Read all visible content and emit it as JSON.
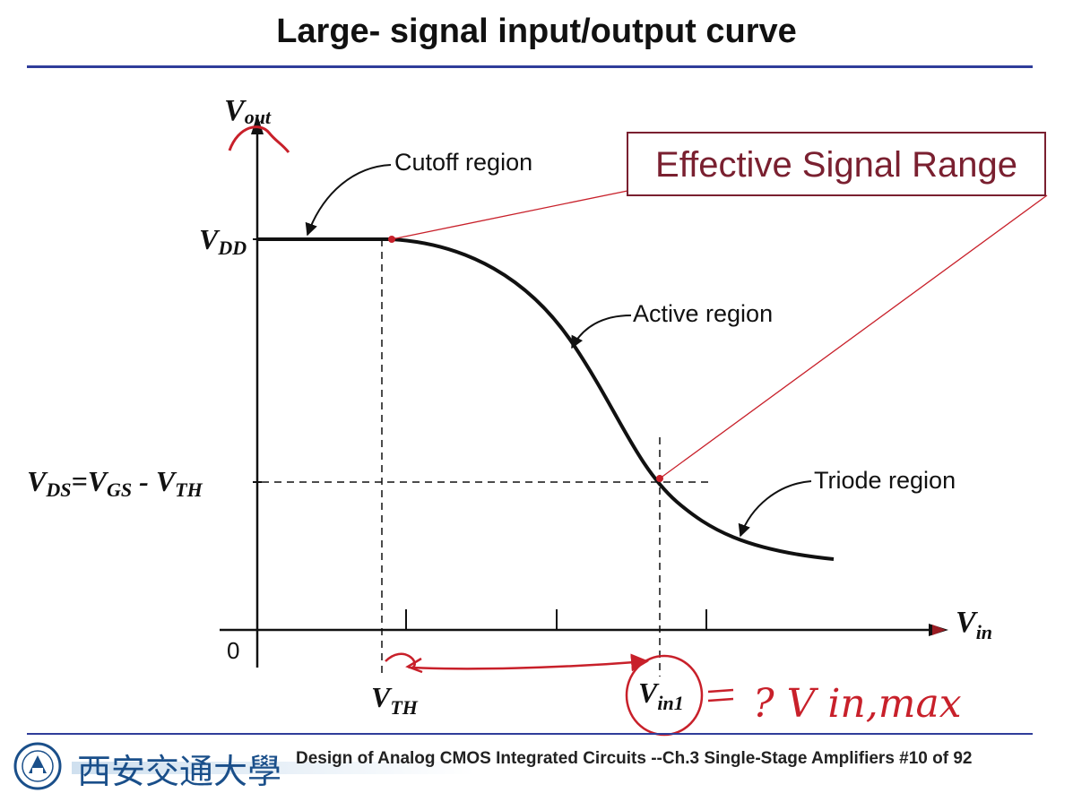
{
  "slide": {
    "title": "Large- signal input/output curve"
  },
  "axes": {
    "y_label_main": "V",
    "y_label_sub": "out",
    "x_label_main": "V",
    "x_label_sub": "in",
    "origin_label": "0"
  },
  "levels": {
    "vdd_main": "V",
    "vdd_sub": "DD",
    "vds_eq_main1": "V",
    "vds_eq_sub1": "DS",
    "vds_eq_mid": "=V",
    "vds_eq_sub2": "GS",
    "vds_eq_dash": " - V",
    "vds_eq_sub3": "TH"
  },
  "x_markers": {
    "vth_main": "V",
    "vth_sub": "TH",
    "vin1_main": "V",
    "vin1_sub": "in1"
  },
  "regions": {
    "cutoff": "Cutoff region",
    "active": "Active region",
    "triode": "Triode region"
  },
  "callout": {
    "effective_range": "Effective Signal Range"
  },
  "handwriting": {
    "note": "? V in,max"
  },
  "footer": {
    "university": "西安交通大學",
    "course": "Design of Analog CMOS Integrated Circuits   --Ch.3 Single-Stage Amplifiers  #10 of 92"
  },
  "colors": {
    "accent_rule": "#2f3d9a",
    "callout_border": "#7a2030",
    "callout_text": "#7a2030",
    "annotation_red": "#c8202a"
  }
}
